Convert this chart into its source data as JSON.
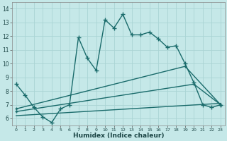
{
  "xlabel": "Humidex (Indice chaleur)",
  "xlim": [
    -0.5,
    23.5
  ],
  "ylim": [
    5.5,
    14.5
  ],
  "yticks": [
    6,
    7,
    8,
    9,
    10,
    11,
    12,
    13,
    14
  ],
  "xticks": [
    0,
    1,
    2,
    3,
    4,
    5,
    6,
    7,
    8,
    9,
    10,
    11,
    12,
    13,
    14,
    15,
    16,
    17,
    18,
    19,
    20,
    21,
    22,
    23
  ],
  "background_color": "#c5e8e8",
  "grid_color": "#aad4d4",
  "line_color": "#1a6b6b",
  "line1_x": [
    0,
    1,
    2,
    3,
    4,
    5,
    6,
    7,
    8,
    9,
    10,
    11,
    12,
    13,
    14,
    15,
    16,
    17,
    18,
    19,
    20,
    21,
    22,
    23
  ],
  "line1_y": [
    8.5,
    7.7,
    6.8,
    6.1,
    5.7,
    6.7,
    7.0,
    11.9,
    10.4,
    9.5,
    13.2,
    12.6,
    13.6,
    12.1,
    12.1,
    12.3,
    11.8,
    11.2,
    11.3,
    10.0,
    8.6,
    7.0,
    6.8,
    7.0
  ],
  "line2_x": [
    0,
    19,
    23
  ],
  "line2_y": [
    6.7,
    9.8,
    7.0
  ],
  "line3_x": [
    0,
    20,
    23
  ],
  "line3_y": [
    6.5,
    8.5,
    7.0
  ],
  "line4_x": [
    0,
    23
  ],
  "line4_y": [
    6.2,
    7.1
  ],
  "markersize": 3.5,
  "linewidth": 1.0
}
